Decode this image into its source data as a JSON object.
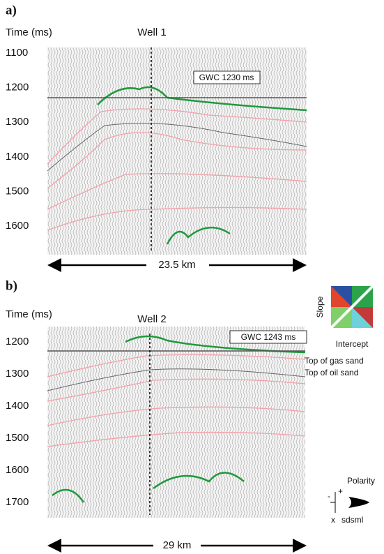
{
  "panels": [
    {
      "label": "a)",
      "axis_title": "Time (ms)",
      "well": "Well 1",
      "gwc": "GWC 1230 ms",
      "ticks": [
        "1100",
        "1200",
        "1300",
        "1400",
        "1500",
        "1600"
      ],
      "distance": "23.5 km"
    },
    {
      "label": "b)",
      "axis_title": "Time (ms)",
      "well": "Well 2",
      "gwc": "GWC 1243 ms",
      "ticks": [
        "1200",
        "1300",
        "1400",
        "1500",
        "1600",
        "1700"
      ],
      "distance": "29 km"
    }
  ],
  "legend": {
    "slope": "Slope",
    "intercept": "Intercept",
    "top_gas": "Top of gas sand",
    "top_oil": "Top of oil sand",
    "polarity": "Polarity",
    "plus": "+",
    "minus": "-",
    "x": "x",
    "sdsml": "sdsml"
  }
}
